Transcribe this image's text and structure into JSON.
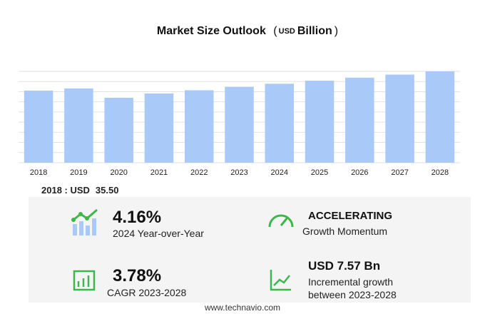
{
  "chart_data": {
    "type": "bar",
    "title": "Market Size Outlook",
    "unit_parts": [
      "(",
      "USD",
      "Billion",
      ")"
    ],
    "categories": [
      "2018",
      "2019",
      "2020",
      "2021",
      "2022",
      "2023",
      "2024",
      "2025",
      "2026",
      "2027",
      "2028"
    ],
    "values": [
      35.5,
      36.6,
      32.0,
      34.1,
      35.7,
      37.4,
      38.9,
      40.4,
      41.9,
      43.4,
      45.0
    ],
    "color": "#a9c9f9",
    "ylim": [
      0,
      45
    ],
    "yticks": [
      0,
      5,
      10,
      15,
      20,
      25,
      30,
      35,
      40,
      45
    ],
    "grid": true
  },
  "base_year": {
    "label": "2018 : USD",
    "value": "35.50"
  },
  "metrics": [
    {
      "value": "4.16%",
      "label": [
        "2024 Year-over-Year"
      ]
    },
    {
      "value": "ACCELERATING",
      "label": [
        "Growth Momentum"
      ]
    },
    {
      "value": "3.78%",
      "label": [
        "CAGR 2023-2028"
      ]
    },
    {
      "value": "USD 7.57 Bn",
      "label": [
        "Incremental growth",
        "between 2023-2028"
      ]
    }
  ],
  "footer": "www.technavio.com"
}
